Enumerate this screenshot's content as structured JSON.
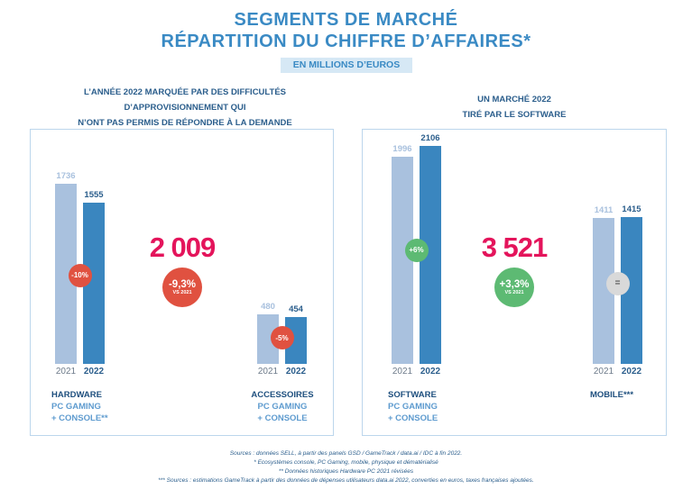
{
  "header": {
    "title_line1": "SEGMENTS DE MARCHÉ",
    "title_line2": "RÉPARTITION DU CHIFFRE D’AFFAIRES*",
    "unit": "EN MILLIONS D’EUROS"
  },
  "colors": {
    "bar_2021": "#a9c1de",
    "bar_2022": "#3a86bf",
    "negative": "#e05140",
    "positive": "#5dba73",
    "neutral": "#d9d9d9",
    "total": "#e4145b"
  },
  "left_panel": {
    "subtitle_line1": "L’ANNÉE 2022 MARQUÉE PAR DES DIFFICULTÉS",
    "subtitle_line2": "D’APPROVISIONNEMENT QUI",
    "subtitle_line3": "N’ONT PAS PERMIS DE RÉPONDRE À LA DEMANDE",
    "total": "2 009",
    "total_change": "-9,3%",
    "total_change_sub": "VS 2021"
  },
  "right_panel": {
    "subtitle_line1": "UN MARCHÉ 2022",
    "subtitle_line2": "TIRÉ PAR LE SOFTWARE",
    "total": "3 521",
    "total_change": "+3,3%",
    "total_change_sub": "VS 2021"
  },
  "chart_data": [
    {
      "type": "bar",
      "categories": [
        "2021",
        "2022"
      ],
      "values": [
        1736,
        1555
      ],
      "value_labels": [
        "1736",
        "1555"
      ],
      "change": "-10%",
      "label": "HARDWARE",
      "sublabel_line1": "PC GAMING",
      "sublabel_line2": "+ CONSOLE**"
    },
    {
      "type": "bar",
      "categories": [
        "2021",
        "2022"
      ],
      "values": [
        480,
        454
      ],
      "value_labels": [
        "480",
        "454"
      ],
      "change": "-5%",
      "label": "ACCESSOIRES",
      "sublabel_line1": "PC GAMING",
      "sublabel_line2": "+ CONSOLE"
    },
    {
      "type": "bar",
      "categories": [
        "2021",
        "2022"
      ],
      "values": [
        1996,
        2106
      ],
      "value_labels": [
        "1996",
        "2106"
      ],
      "change": "+6%",
      "label": "SOFTWARE",
      "sublabel_line1": "PC GAMING",
      "sublabel_line2": "+ CONSOLE"
    },
    {
      "type": "bar",
      "categories": [
        "2021",
        "2022"
      ],
      "values": [
        1411,
        1415
      ],
      "value_labels": [
        "1411",
        "1415"
      ],
      "change": "=",
      "label": "MOBILE***",
      "sublabel_line1": "",
      "sublabel_line2": ""
    }
  ],
  "footnotes": {
    "line1": "Sources : données SELL, à partir des panels GSD / GameTrack / data.ai / IDC à fin 2022.",
    "line2": "* Ecosystèmes console, PC Gaming, mobile, physique et dématérialisé",
    "line3": "** Données historiques Hardware PC 2021 révisées",
    "line4": "*** Sources : estimations GameTrack à partir des données de dépenses utilisateurs data.ai 2022, converties en euros, taxes françaises ajoutées."
  }
}
